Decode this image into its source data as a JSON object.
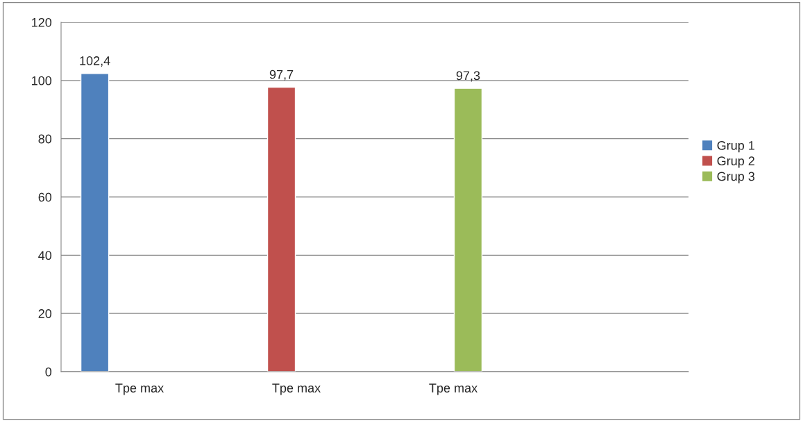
{
  "chart_data": {
    "type": "bar",
    "categories": [
      "Tpe max",
      "Tpe max",
      "Tpe max",
      null
    ],
    "series": [
      {
        "name": "Grup 1",
        "color": "#4f81bd",
        "values": [
          102.4,
          null,
          null,
          null
        ],
        "value_labels": [
          "102,4",
          null,
          null,
          null
        ]
      },
      {
        "name": "Grup 2",
        "color": "#c0504d",
        "values": [
          null,
          97.7,
          null,
          null
        ],
        "value_labels": [
          null,
          "97,7",
          null,
          null
        ]
      },
      {
        "name": "Grup 3",
        "color": "#9bbb59",
        "values": [
          null,
          null,
          97.3,
          null
        ],
        "value_labels": [
          null,
          null,
          "97,3",
          null
        ]
      }
    ],
    "ylim": [
      0,
      120
    ],
    "yticks": [
      0,
      20,
      40,
      60,
      80,
      100,
      120
    ],
    "grid": "y",
    "legend": "right"
  }
}
